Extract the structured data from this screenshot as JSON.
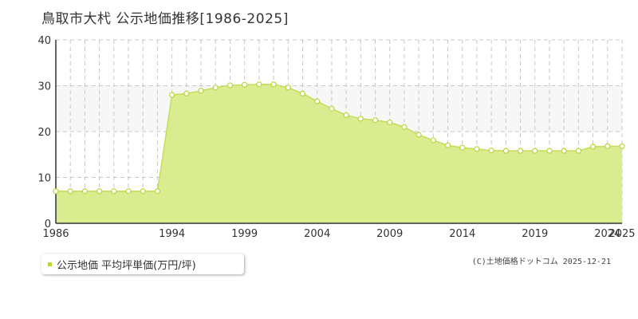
{
  "title": "鳥取市大杙 公示地価推移[1986-2025]",
  "legend": {
    "label": "公示地価 平均坪単価(万円/坪)",
    "marker_color": "#b9d63b"
  },
  "credit": "(C)土地価格ドットコム 2025-12-21",
  "colors": {
    "area_fill": "#d9ec8f",
    "line": "#c4de5a",
    "point_stroke": "#b9d63b",
    "highlight_band": "#f7f7f7",
    "axis": "#333333",
    "grid": "#c8c8c8"
  },
  "chart_data": {
    "type": "area",
    "title": "鳥取市大杙 公示地価推移[1986-2025]",
    "xlabel": "",
    "ylabel": "",
    "xlim": [
      1986,
      2025
    ],
    "ylim": [
      0,
      40
    ],
    "yticks": [
      0,
      10,
      20,
      30,
      40
    ],
    "xtick_labels": [
      1986,
      1994,
      1999,
      2004,
      2009,
      2014,
      2019,
      2024,
      2025
    ],
    "highlight_band": [
      20,
      30
    ],
    "grid": true,
    "series": [
      {
        "name": "公示地価 平均坪単価(万円/坪)",
        "x": [
          1986,
          1987,
          1988,
          1989,
          1990,
          1991,
          1992,
          1993,
          1994,
          1995,
          1996,
          1997,
          1998,
          1999,
          2000,
          2001,
          2002,
          2003,
          2004,
          2005,
          2006,
          2007,
          2008,
          2009,
          2010,
          2011,
          2012,
          2013,
          2014,
          2015,
          2016,
          2017,
          2018,
          2019,
          2020,
          2021,
          2022,
          2023,
          2024,
          2025
        ],
        "y": [
          7.0,
          7.0,
          7.0,
          7.0,
          7.0,
          7.0,
          7.0,
          7.0,
          28.0,
          28.3,
          28.9,
          29.6,
          30.1,
          30.2,
          30.3,
          30.3,
          29.6,
          28.3,
          26.6,
          25.0,
          23.6,
          22.8,
          22.5,
          22.0,
          21.0,
          19.3,
          18.1,
          17.0,
          16.5,
          16.2,
          15.9,
          15.8,
          15.8,
          15.8,
          15.8,
          15.8,
          15.8,
          16.7,
          16.8,
          16.8
        ]
      }
    ]
  }
}
